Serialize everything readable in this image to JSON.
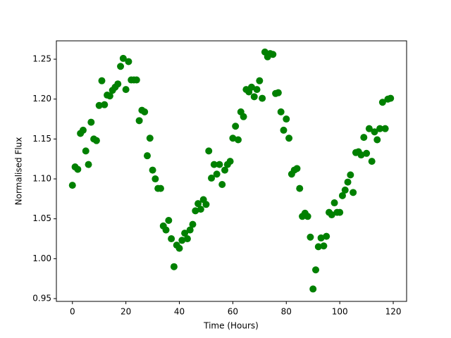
{
  "chart_data": {
    "type": "scatter",
    "x_label": "Time (Hours)",
    "y_label": "Normalised Flux",
    "color": "#008000",
    "xlim": [
      -6,
      125
    ],
    "ylim": [
      0.9465,
      1.273
    ],
    "xticks": [
      0,
      20,
      40,
      60,
      80,
      100,
      120
    ],
    "yticks": [
      0.95,
      {
        "value": 1.0,
        "label": "1.00"
      },
      1.05,
      {
        "value": 1.1,
        "label": "1.10"
      },
      1.15,
      {
        "value": 1.2,
        "label": "1.20"
      },
      1.25
    ],
    "grid": false,
    "x": [
      0,
      1,
      2,
      3,
      4,
      5,
      6,
      7,
      8,
      9,
      10,
      11,
      12,
      13,
      14,
      15,
      16,
      17,
      18,
      19,
      20,
      21,
      22,
      23,
      24,
      25,
      26,
      27,
      28,
      29,
      30,
      31,
      32,
      33,
      34,
      35,
      36,
      37,
      38,
      39,
      40,
      41,
      42,
      43,
      44,
      45,
      46,
      47,
      48,
      49,
      50,
      51,
      52,
      53,
      54,
      55,
      56,
      57,
      58,
      59,
      60,
      61,
      62,
      63,
      64,
      65,
      66,
      67,
      68,
      69,
      70,
      71,
      72,
      73,
      74,
      75,
      76,
      77,
      78,
      79,
      80,
      81,
      82,
      83,
      84,
      85,
      86,
      87,
      88,
      89,
      90,
      91,
      92,
      93,
      94,
      95,
      96,
      97,
      98,
      99,
      100,
      101,
      102,
      103,
      104,
      105,
      106,
      107,
      108,
      109,
      110,
      111,
      112,
      113,
      114,
      115,
      116,
      117,
      118,
      119
    ],
    "values": [
      1.092,
      1.115,
      1.112,
      1.157,
      1.161,
      1.135,
      1.118,
      1.171,
      1.15,
      1.148,
      1.192,
      1.223,
      1.193,
      1.205,
      1.204,
      1.211,
      1.215,
      1.219,
      1.241,
      1.251,
      1.212,
      1.247,
      1.224,
      1.224,
      1.224,
      1.173,
      1.186,
      1.184,
      1.129,
      1.151,
      1.111,
      1.1,
      1.088,
      1.088,
      1.041,
      1.036,
      1.048,
      1.025,
      0.99,
      1.017,
      1.013,
      1.023,
      1.032,
      1.025,
      1.036,
      1.043,
      1.06,
      1.069,
      1.062,
      1.074,
      1.068,
      1.135,
      1.101,
      1.118,
      1.106,
      1.118,
      1.093,
      1.111,
      1.118,
      1.122,
      1.151,
      1.166,
      1.149,
      1.184,
      1.178,
      1.212,
      1.209,
      1.215,
      1.203,
      1.212,
      1.223,
      1.201,
      1.259,
      1.253,
      1.257,
      1.256,
      1.207,
      1.208,
      1.184,
      1.161,
      1.175,
      1.151,
      1.106,
      1.111,
      1.113,
      1.088,
      1.053,
      1.057,
      1.053,
      1.027,
      0.962,
      0.986,
      1.015,
      1.026,
      1.016,
      1.028,
      1.058,
      1.055,
      1.07,
      1.058,
      1.058,
      1.079,
      1.086,
      1.096,
      1.105,
      1.083,
      1.133,
      1.134,
      1.13,
      1.152,
      1.132,
      1.163,
      1.122,
      1.159,
      1.149,
      1.163,
      1.196,
      1.163,
      1.2,
      1.201
    ]
  }
}
